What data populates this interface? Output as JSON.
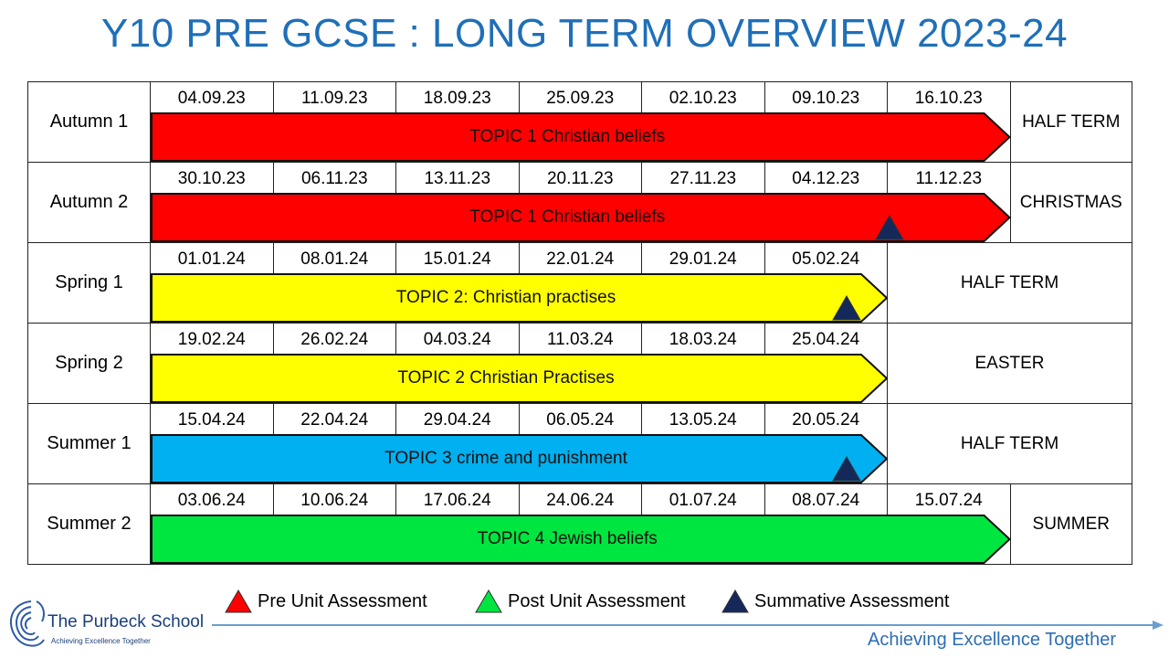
{
  "title": "Y10 PRE GCSE : LONG TERM OVERVIEW 2023-24",
  "colors": {
    "title": "#1f6fb8",
    "red": "#ff0000",
    "yellow": "#ffff00",
    "blue": "#00b0f0",
    "green": "#00e640",
    "navy": "#14285a"
  },
  "rows": [
    {
      "label": "Autumn 1",
      "dates": [
        "04.09.23",
        "11.09.23",
        "18.09.23",
        "25.09.23",
        "02.10.23",
        "09.10.23",
        "16.10.23"
      ],
      "topic": "TOPIC 1 Christian beliefs",
      "color": "#ff0000",
      "end": "HALF TERM",
      "summative": false
    },
    {
      "label": "Autumn 2",
      "dates": [
        "30.10.23",
        "06.11.23",
        "13.11.23",
        "20.11.23",
        "27.11.23",
        "04.12.23",
        "11.12.23"
      ],
      "topic": "TOPIC 1 Christian beliefs",
      "color": "#ff0000",
      "end": "CHRISTMAS",
      "summative": true
    },
    {
      "label": "Spring 1",
      "dates": [
        "01.01.24",
        "08.01.24",
        "15.01.24",
        "22.01.24",
        "29.01.24",
        "05.02.24"
      ],
      "topic": "TOPIC 2:  Christian practises",
      "color": "#ffff00",
      "end": "HALF TERM",
      "summative": true
    },
    {
      "label": "Spring 2",
      "dates": [
        "19.02.24",
        "26.02.24",
        "04.03.24",
        "11.03.24",
        "18.03.24",
        "25.04.24"
      ],
      "topic": "TOPIC 2 Christian Practises",
      "color": "#ffff00",
      "end": "EASTER",
      "summative": false
    },
    {
      "label": "Summer 1",
      "dates": [
        "15.04.24",
        "22.04.24",
        "29.04.24",
        "06.05.24",
        "13.05.24",
        "20.05.24"
      ],
      "topic": "TOPIC 3 crime and punishment",
      "color": "#00b0f0",
      "end": "HALF TERM",
      "summative": true
    },
    {
      "label": "Summer 2",
      "dates": [
        "03.06.24",
        "10.06.24",
        "17.06.24",
        "24.06.24",
        "01.07.24",
        "08.07.24",
        "15.07.24"
      ],
      "topic": "TOPIC 4 Jewish beliefs",
      "color": "#00e640",
      "end": "SUMMER",
      "summative": false
    }
  ],
  "legend": [
    {
      "label": "Pre Unit Assessment",
      "color": "#ff0000"
    },
    {
      "label": "Post Unit Assessment",
      "color": "#00e640"
    },
    {
      "label": "Summative Assessment",
      "color": "#14285a"
    }
  ],
  "school": {
    "name": "The Purbeck School",
    "tagline": "Achieving Excellence Together"
  },
  "motto": "Achieving Excellence Together"
}
